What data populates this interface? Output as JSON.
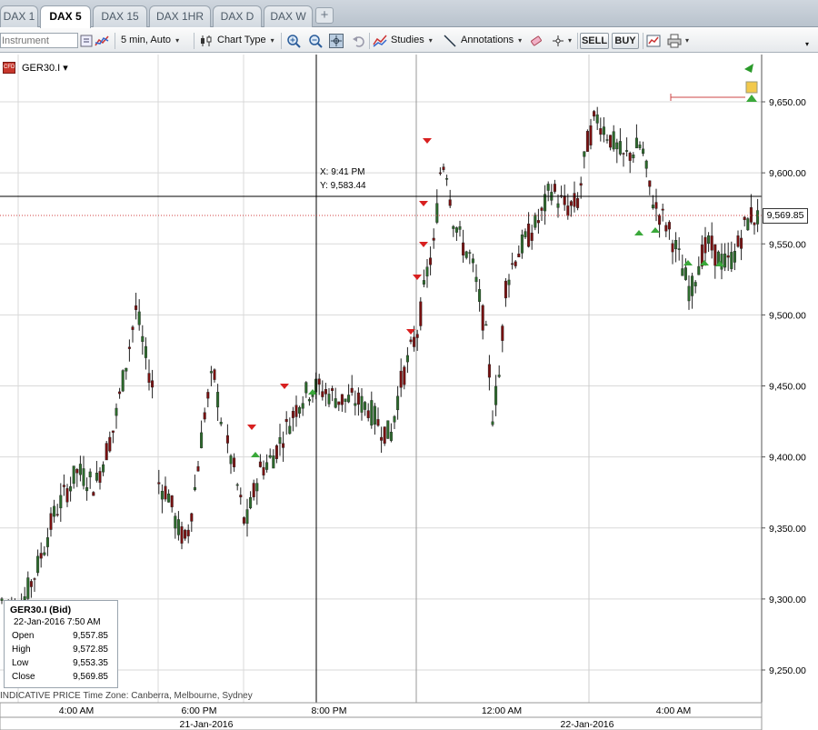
{
  "tabs": [
    {
      "label": "DAX 1",
      "active": false
    },
    {
      "label": "DAX 5",
      "active": true
    },
    {
      "label": "DAX 15",
      "active": false
    },
    {
      "label": "DAX 1HR",
      "active": false
    },
    {
      "label": "DAX D",
      "active": false
    },
    {
      "label": "DAX W",
      "active": false
    }
  ],
  "tab_add_label": "+",
  "toolbar": {
    "instrument_placeholder": "Instrument",
    "interval_label": "5 min, Auto",
    "chart_type_label": "Chart Type",
    "studies_label": "Studies",
    "annotations_label": "Annotations",
    "sell_label": "SELL",
    "buy_label": "BUY",
    "caret": "▾"
  },
  "chart": {
    "instrument_label": "GER30.I ▾",
    "instrument_icon_text": "CFD",
    "crosshair_x_label": "X: 9:41 PM",
    "crosshair_y_label": "Y: 9,583.44",
    "last_price_label": "9,569.85",
    "footer_note": "INDICATIVE PRICE   Time Zone: Canberra, Melbourne, Sydney",
    "y_ticks": [
      "9,650.00",
      "9,600.00",
      "9,550.00",
      "9,500.00",
      "9,450.00",
      "9,400.00",
      "9,350.00",
      "9,300.00",
      "9,250.00"
    ],
    "x_ticks": [
      "4:00 AM",
      "6:00 PM",
      "8:00 PM",
      "12:00 AM",
      "4:00 AM"
    ],
    "date_labels": [
      "21-Jan-2016",
      "22-Jan-2016"
    ],
    "colors": {
      "up": "#2c6b2c",
      "down": "#7a1010",
      "grid": "#d9d9d9",
      "price_line": "#d04040",
      "sell_marker": "#d82020",
      "buy_marker": "#3aa83a"
    }
  },
  "ohlc_box": {
    "title": "GER30.I (Bid)",
    "datetime": "22-Jan-2016 7:50 AM",
    "rows": [
      {
        "k": "Open",
        "v": "9,557.85"
      },
      {
        "k": "High",
        "v": "9,572.85"
      },
      {
        "k": "Low",
        "v": "9,553.35"
      },
      {
        "k": "Close",
        "v": "9,569.85"
      }
    ]
  }
}
